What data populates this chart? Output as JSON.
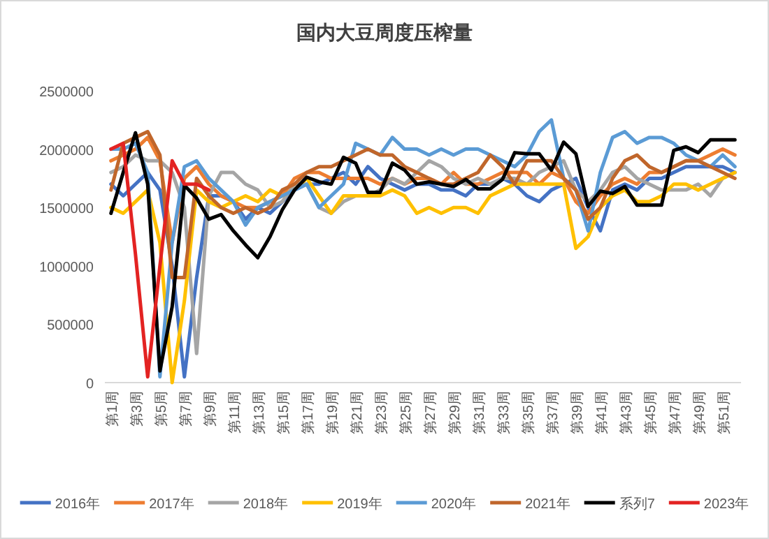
{
  "chart_data": {
    "type": "line",
    "title": "国内大豆周度压榨量",
    "categories": [
      "第1周",
      null,
      "第3周",
      null,
      "第5周",
      null,
      "第7周",
      null,
      "第9周",
      null,
      "第11周",
      null,
      "第13周",
      null,
      "第15周",
      null,
      "第17周",
      null,
      "第19周",
      null,
      "第21周",
      null,
      "第23周",
      null,
      "第25周",
      null,
      "第27周",
      null,
      "第29周",
      null,
      "第31周",
      null,
      "第33周",
      null,
      "第35周",
      null,
      "第37周",
      null,
      "第39周",
      null,
      "第41周",
      null,
      "第43周",
      null,
      "第45周",
      null,
      "第47周",
      null,
      "第49周",
      null,
      "第51周",
      null
    ],
    "ylim": [
      0,
      2500000
    ],
    "yticks": [
      0,
      500000,
      1000000,
      1500000,
      2000000,
      2500000
    ],
    "grid": false,
    "legend": "bottom",
    "line_style": "solid",
    "marker": "none",
    "series": [
      {
        "name": "2016年",
        "color": "#4472c4",
        "values": [
          1700000,
          1600000,
          1700000,
          1800000,
          1650000,
          1000000,
          50000,
          900000,
          1600000,
          1600000,
          1550000,
          1400000,
          1500000,
          1450000,
          1550000,
          1650000,
          1700000,
          1700000,
          1750000,
          1800000,
          1700000,
          1850000,
          1750000,
          1700000,
          1650000,
          1700000,
          1700000,
          1650000,
          1650000,
          1600000,
          1700000,
          1700000,
          1750000,
          1700000,
          1600000,
          1550000,
          1650000,
          1700000,
          1750000,
          1500000,
          1300000,
          1650000,
          1700000,
          1650000,
          1750000,
          1750000,
          1800000,
          1850000,
          1850000,
          1850000,
          1850000,
          1800000
        ]
      },
      {
        "name": "2017年",
        "color": "#ed7d31",
        "values": [
          1900000,
          1950000,
          2000000,
          2100000,
          1900000,
          1200000,
          1750000,
          1850000,
          1700000,
          1600000,
          1550000,
          1500000,
          1500000,
          1550000,
          1600000,
          1750000,
          1800000,
          1800000,
          1750000,
          1750000,
          1750000,
          1750000,
          1700000,
          1750000,
          1700000,
          1750000,
          1750000,
          1700000,
          1800000,
          1700000,
          1700000,
          1750000,
          1800000,
          1800000,
          1800000,
          1700000,
          1800000,
          1750000,
          1550000,
          1450000,
          1600000,
          1700000,
          1750000,
          1700000,
          1800000,
          1800000,
          1850000,
          1900000,
          1900000,
          1950000,
          2000000,
          1950000
        ]
      },
      {
        "name": "2018年",
        "color": "#a5a5a5",
        "values": [
          1800000,
          1850000,
          1950000,
          1900000,
          1900000,
          1800000,
          1500000,
          250000,
          1600000,
          1800000,
          1800000,
          1700000,
          1650000,
          1500000,
          1550000,
          1700000,
          1700000,
          1500000,
          1450000,
          1550000,
          1600000,
          1600000,
          1650000,
          1750000,
          1700000,
          1800000,
          1900000,
          1850000,
          1750000,
          1700000,
          1750000,
          1700000,
          1750000,
          1750000,
          1700000,
          1800000,
          1850000,
          1900000,
          1650000,
          1550000,
          1650000,
          1800000,
          1850000,
          1750000,
          1700000,
          1650000,
          1650000,
          1650000,
          1700000,
          1600000,
          1750000,
          1800000
        ]
      },
      {
        "name": "2019年",
        "color": "#ffc000",
        "values": [
          1500000,
          1450000,
          1550000,
          1650000,
          1200000,
          0,
          700000,
          1650000,
          1550000,
          1500000,
          1550000,
          1600000,
          1550000,
          1650000,
          1600000,
          1650000,
          1750000,
          1600000,
          1450000,
          1600000,
          1600000,
          1600000,
          1600000,
          1650000,
          1600000,
          1450000,
          1500000,
          1450000,
          1500000,
          1500000,
          1450000,
          1600000,
          1650000,
          1700000,
          1700000,
          1700000,
          1700000,
          1700000,
          1150000,
          1250000,
          1500000,
          1600000,
          1650000,
          1550000,
          1550000,
          1600000,
          1700000,
          1700000,
          1650000,
          1700000,
          1750000,
          1800000
        ]
      },
      {
        "name": "2020年",
        "color": "#5b9bd5",
        "values": [
          2000000,
          2000000,
          2050000,
          1800000,
          50000,
          1200000,
          1850000,
          1900000,
          1750000,
          1650000,
          1550000,
          1350000,
          1500000,
          1550000,
          1600000,
          1650000,
          1700000,
          1500000,
          1600000,
          1700000,
          2050000,
          2000000,
          1950000,
          2100000,
          2000000,
          2000000,
          1950000,
          2000000,
          1950000,
          2000000,
          2000000,
          1950000,
          1900000,
          1850000,
          1950000,
          2150000,
          2250000,
          1750000,
          1650000,
          1300000,
          1800000,
          2100000,
          2150000,
          2050000,
          2100000,
          2100000,
          2050000,
          1950000,
          1900000,
          1850000,
          1950000,
          1850000
        ]
      },
      {
        "name": "2021年",
        "color": "#c0662b",
        "values": [
          1650000,
          2050000,
          2100000,
          2150000,
          1950000,
          900000,
          900000,
          1750000,
          1600000,
          1500000,
          1450000,
          1500000,
          1450000,
          1500000,
          1650000,
          1700000,
          1800000,
          1850000,
          1850000,
          1900000,
          1950000,
          2000000,
          1950000,
          1950000,
          1850000,
          1800000,
          1750000,
          1700000,
          1700000,
          1750000,
          1800000,
          1950000,
          1850000,
          1700000,
          1900000,
          1900000,
          1900000,
          1750000,
          1650000,
          1400000,
          1500000,
          1750000,
          1900000,
          1950000,
          1850000,
          1800000,
          1850000,
          1900000,
          1900000,
          1850000,
          1800000,
          1750000
        ]
      },
      {
        "name": "系列7",
        "color": "#000000",
        "values": [
          1450000,
          1800000,
          2140000,
          1700000,
          100000,
          650000,
          1690000,
          1580000,
          1400000,
          1440000,
          1300000,
          1180000,
          1070000,
          1250000,
          1480000,
          1650000,
          1760000,
          1720000,
          1700000,
          1930000,
          1880000,
          1630000,
          1630000,
          1880000,
          1820000,
          1700000,
          1720000,
          1700000,
          1680000,
          1740000,
          1660000,
          1660000,
          1740000,
          1970000,
          1960000,
          1960000,
          1820000,
          2060000,
          1960000,
          1510000,
          1640000,
          1620000,
          1680000,
          1520000,
          1520000,
          1520000,
          1990000,
          2020000,
          1970000,
          2080000,
          2080000,
          2080000
        ]
      },
      {
        "name": "2023年",
        "color": "#e32322",
        "values": [
          2000000,
          2050000,
          1100000,
          50000,
          1000000,
          1900000,
          1700000,
          1700000,
          1650000,
          null,
          null,
          null,
          null,
          null,
          null,
          null,
          null,
          null,
          null,
          null,
          null,
          null,
          null,
          null,
          null,
          null,
          null,
          null,
          null,
          null,
          null,
          null,
          null,
          null,
          null,
          null,
          null,
          null,
          null,
          null,
          null,
          null,
          null,
          null,
          null,
          null,
          null,
          null,
          null,
          null,
          null,
          null
        ]
      }
    ]
  }
}
